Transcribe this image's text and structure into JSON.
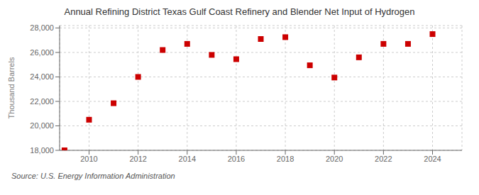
{
  "chart_data": {
    "type": "scatter",
    "title": "Annual Refining District Texas Gulf Coast Refinery and Blender Net Input of Hydrogen",
    "ylabel": "Thousand Barrels",
    "source": "Source: U.S. Energy Information Administration",
    "x": [
      2009,
      2010,
      2011,
      2012,
      2013,
      2014,
      2015,
      2016,
      2017,
      2018,
      2019,
      2020,
      2021,
      2022,
      2023,
      2024
    ],
    "values": [
      18000,
      20500,
      21850,
      24000,
      26200,
      26700,
      25800,
      25450,
      27100,
      27250,
      24950,
      23950,
      25600,
      26700,
      26700,
      27500
    ],
    "color": "#cc0000",
    "marker": "square",
    "xlim": [
      2008.8,
      2025.2
    ],
    "ylim": [
      18000,
      28200
    ],
    "xticks": [
      2010,
      2012,
      2014,
      2016,
      2018,
      2020,
      2022,
      2024
    ],
    "yticks": [
      {
        "value": 18000,
        "label": "18,000"
      },
      {
        "value": 20000,
        "label": "20,000"
      },
      {
        "value": 22000,
        "label": "22,000"
      },
      {
        "value": 24000,
        "label": "24,000"
      },
      {
        "value": 26000,
        "label": "26,000"
      },
      {
        "value": 28000,
        "label": "28,000"
      }
    ],
    "grid": true
  }
}
